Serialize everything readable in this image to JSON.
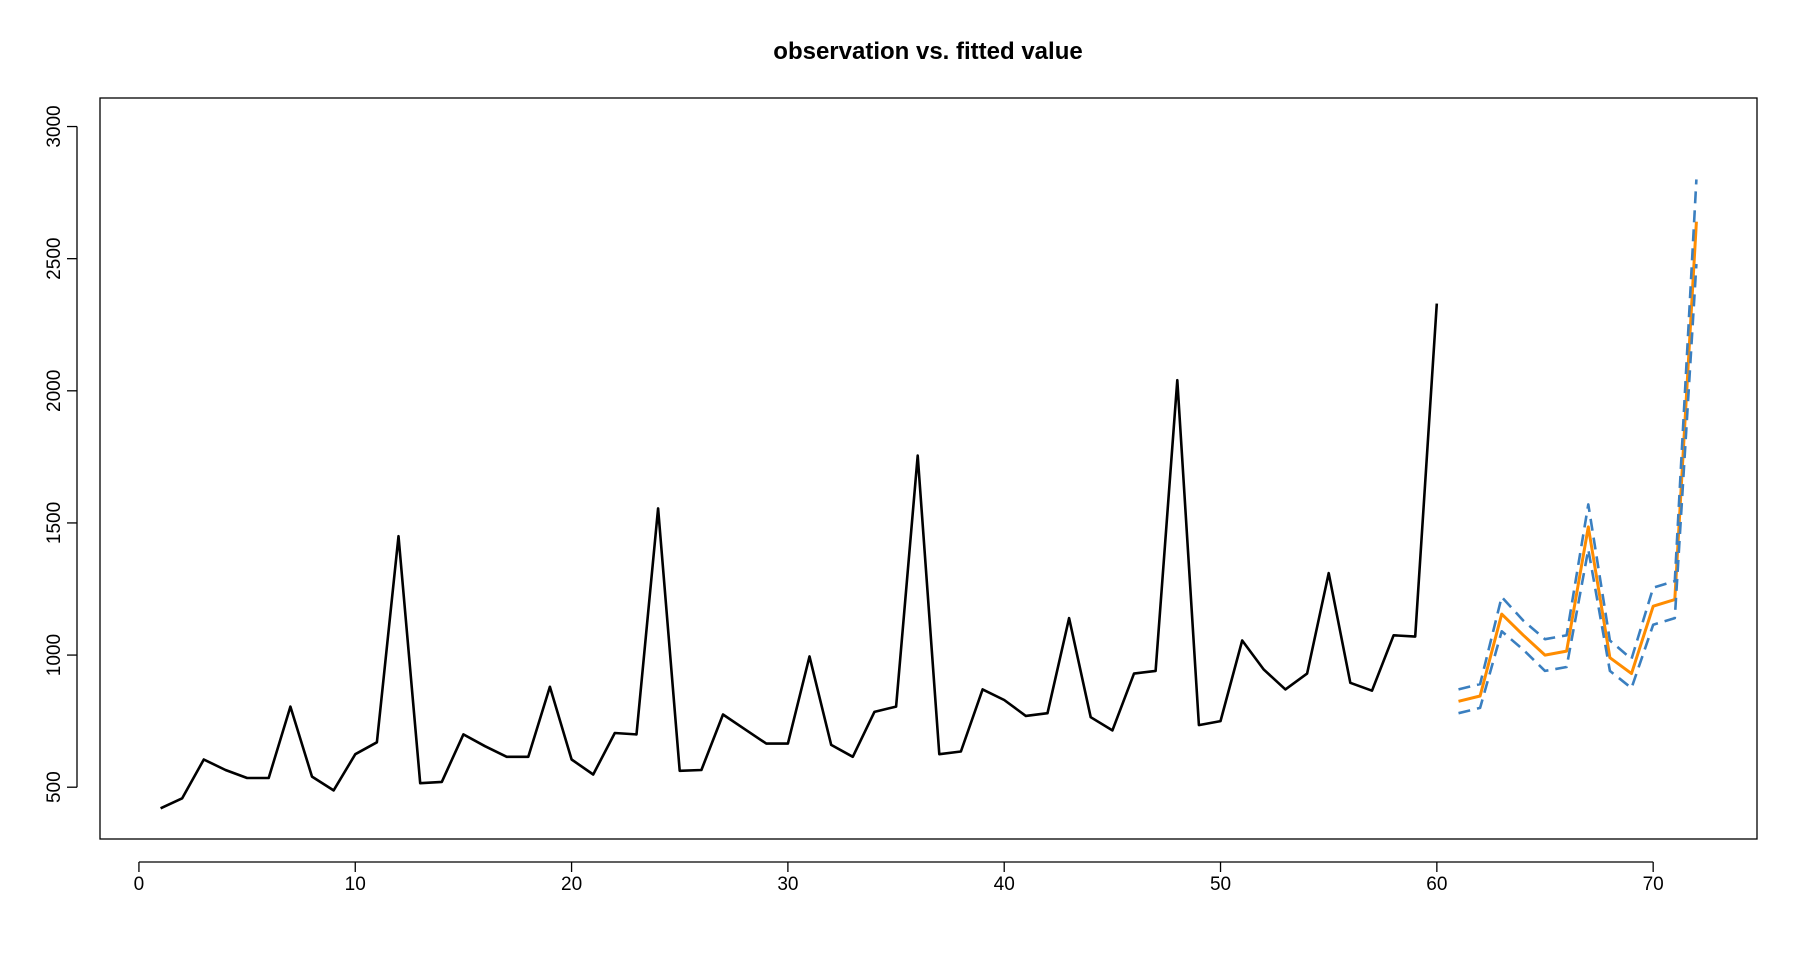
{
  "chart_data": {
    "type": "line",
    "title": "observation vs. fitted value",
    "xlabel": "",
    "ylabel": "",
    "xlim": [
      -1.8,
      74.8
    ],
    "ylim": [
      304,
      3108
    ],
    "x_ticks": [
      "0",
      "10",
      "20",
      "30",
      "40",
      "50",
      "60",
      "70"
    ],
    "y_ticks": [
      "500",
      "1000",
      "1500",
      "2000",
      "2500",
      "3000"
    ],
    "grid": false,
    "legend": "none",
    "series": [
      {
        "role": "observed",
        "color": "#000000",
        "dash": "solid",
        "x": [
          1,
          2,
          3,
          4,
          5,
          6,
          7,
          8,
          9,
          10,
          11,
          12,
          13,
          14,
          15,
          16,
          17,
          18,
          19,
          20,
          21,
          22,
          23,
          24,
          25,
          26,
          27,
          28,
          29,
          30,
          31,
          32,
          33,
          34,
          35,
          36,
          37,
          38,
          39,
          40,
          41,
          42,
          43,
          44,
          45,
          46,
          47,
          48,
          49,
          50,
          51,
          52,
          53,
          54,
          55,
          56,
          57,
          58,
          59,
          60
        ],
        "values": [
          420,
          458,
          605,
          565,
          535,
          535,
          805,
          540,
          488,
          625,
          670,
          1450,
          515,
          520,
          700,
          655,
          615,
          615,
          880,
          605,
          548,
          705,
          700,
          1555,
          562,
          565,
          775,
          720,
          665,
          665,
          995,
          660,
          615,
          785,
          805,
          1755,
          625,
          635,
          870,
          830,
          770,
          780,
          1140,
          765,
          715,
          930,
          940,
          2040,
          735,
          750,
          1055,
          945,
          870,
          930,
          1310,
          895,
          865,
          1075,
          1070,
          2330
        ]
      },
      {
        "role": "fitted",
        "color": "#FF8C00",
        "dash": "solid",
        "x": [
          61,
          62,
          63,
          64,
          65,
          66,
          67,
          68,
          69,
          70,
          71,
          72
        ],
        "values": [
          825,
          845,
          1155,
          1075,
          1000,
          1015,
          1485,
          990,
          930,
          1185,
          1210,
          2640
        ]
      },
      {
        "role": "upper",
        "color": "#3A7FC0",
        "dash": "dashed",
        "x": [
          61,
          62,
          63,
          64,
          65,
          66,
          67,
          68,
          69,
          70,
          71,
          72
        ],
        "values": [
          870,
          890,
          1220,
          1130,
          1060,
          1075,
          1570,
          1055,
          985,
          1255,
          1280,
          2800
        ]
      },
      {
        "role": "lower",
        "color": "#3A7FC0",
        "dash": "dashed",
        "x": [
          61,
          62,
          63,
          64,
          65,
          66,
          67,
          68,
          69,
          70,
          71,
          72
        ],
        "values": [
          780,
          800,
          1090,
          1020,
          940,
          955,
          1400,
          940,
          875,
          1115,
          1140,
          2480
        ]
      }
    ]
  }
}
